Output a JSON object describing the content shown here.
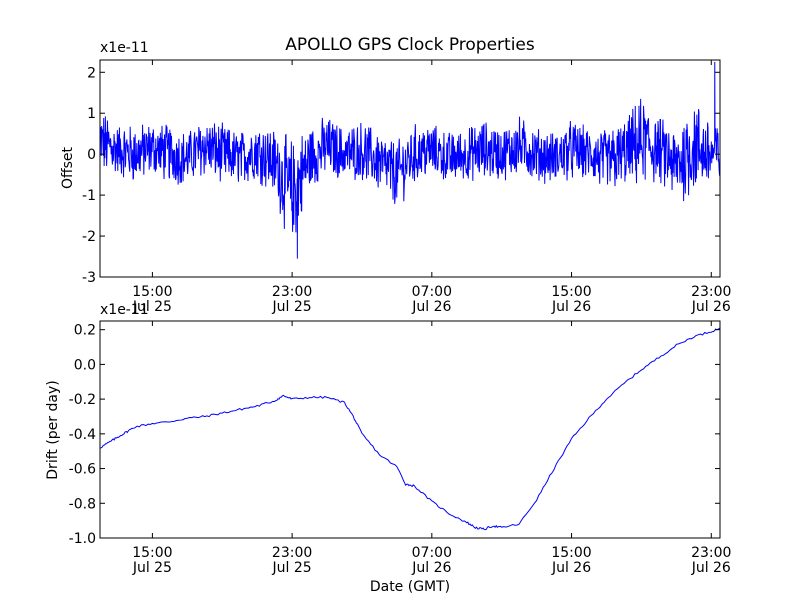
{
  "title": "APOLLO GPS Clock Properties",
  "xlabel": "Date (GMT)",
  "x_ticks": [
    {
      "time": "15:00",
      "date": "Jul 25"
    },
    {
      "time": "23:00",
      "date": "Jul 25"
    },
    {
      "time": "07:00",
      "date": "Jul 26"
    },
    {
      "time": "15:00",
      "date": "Jul 26"
    },
    {
      "time": "23:00",
      "date": "Jul 26"
    }
  ],
  "colors": {
    "series": "#0000ff",
    "axes": "#000000",
    "background": "#ffffff"
  },
  "chart_data": [
    {
      "type": "line",
      "ylabel": "Offset",
      "y_offset_text": "x1e-11",
      "xlim": [
        "2010-07-25 12:00",
        "2010-07-26 23:30"
      ],
      "ylim": [
        -3,
        2.3
      ],
      "y_ticks": [
        2,
        1,
        0,
        -1,
        -2,
        -3
      ],
      "y_tick_labels": [
        "2",
        "1",
        "0",
        "-1",
        "-2",
        "-3"
      ],
      "grid": false,
      "series": [
        {
          "x_hours": [
            0,
            1,
            2,
            3,
            4,
            5,
            6,
            7,
            8,
            9,
            10,
            11,
            12,
            13,
            14,
            15,
            16,
            17,
            18,
            19,
            20,
            21,
            22,
            23,
            24,
            25,
            26,
            27,
            28,
            29,
            30,
            31,
            32,
            33,
            34,
            35
          ],
          "mean": [
            0.3,
            0.1,
            0.0,
            0.15,
            0.0,
            -0.1,
            0.2,
            0.0,
            -0.1,
            0.1,
            -0.2,
            -1.0,
            -0.1,
            0.2,
            0.0,
            0.1,
            -0.2,
            -0.5,
            0.0,
            0.1,
            -0.1,
            0.0,
            0.1,
            0.0,
            0.2,
            0.0,
            -0.1,
            0.1,
            0.0,
            -0.2,
            0.0,
            0.3,
            0.1,
            -0.3,
            0.2,
            0.0
          ],
          "amp": [
            0.9,
            0.7,
            0.8,
            0.7,
            0.8,
            0.7,
            0.8,
            0.8,
            0.7,
            0.8,
            0.9,
            1.5,
            0.9,
            0.8,
            0.7,
            0.8,
            0.8,
            0.9,
            0.8,
            0.7,
            0.7,
            0.7,
            0.8,
            0.7,
            0.8,
            0.7,
            0.7,
            0.8,
            0.7,
            0.9,
            0.9,
            1.2,
            0.9,
            1.0,
            1.3,
            0.9
          ],
          "min_point": {
            "x_hour": 11.3,
            "y": -2.55
          },
          "max_point": {
            "x_hour": 35.2,
            "y": 2.25
          }
        }
      ]
    },
    {
      "type": "line",
      "ylabel": "Drift (per day)",
      "y_offset_text": "x1e-11",
      "xlim": [
        "2010-07-25 12:00",
        "2010-07-26 23:30"
      ],
      "ylim": [
        -1.0,
        0.25
      ],
      "y_ticks": [
        0.2,
        0.0,
        -0.2,
        -0.4,
        -0.6,
        -0.8,
        -1.0
      ],
      "y_tick_labels": [
        "0.2",
        "0.0",
        "-0.2",
        "-0.4",
        "-0.6",
        "-0.8",
        "-1.0"
      ],
      "grid": false,
      "series": [
        {
          "x_hours": [
            0,
            0.5,
            1,
            1.5,
            2,
            3,
            4,
            5,
            6,
            7,
            8,
            9,
            10,
            10.5,
            11,
            12,
            13,
            14,
            14.5,
            15,
            16,
            17,
            17.5,
            18,
            19,
            20,
            21,
            21.5,
            22,
            22.5,
            23,
            24,
            25,
            26,
            27,
            28,
            29,
            30,
            31,
            32,
            33,
            34,
            35,
            35.5
          ],
          "y": [
            -0.48,
            -0.45,
            -0.42,
            -0.39,
            -0.36,
            -0.34,
            -0.33,
            -0.31,
            -0.3,
            -0.28,
            -0.26,
            -0.24,
            -0.21,
            -0.18,
            -0.2,
            -0.19,
            -0.19,
            -0.22,
            -0.3,
            -0.4,
            -0.52,
            -0.59,
            -0.69,
            -0.7,
            -0.79,
            -0.86,
            -0.91,
            -0.94,
            -0.95,
            -0.93,
            -0.94,
            -0.92,
            -0.78,
            -0.6,
            -0.43,
            -0.31,
            -0.2,
            -0.11,
            -0.03,
            0.04,
            0.11,
            0.16,
            0.19,
            0.21
          ]
        }
      ]
    }
  ]
}
